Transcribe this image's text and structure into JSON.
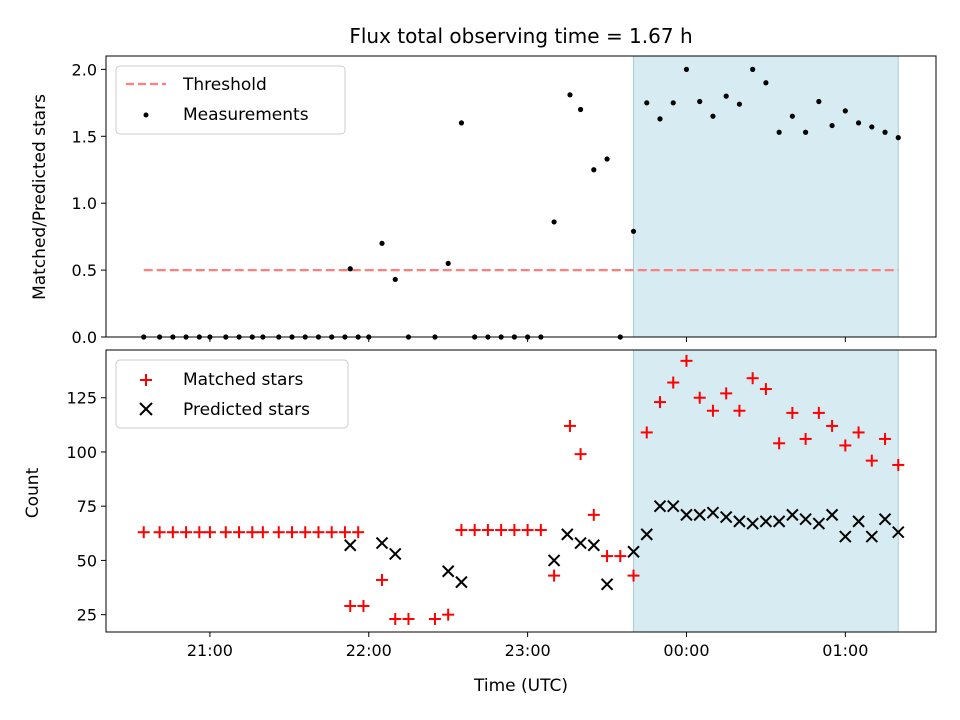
{
  "chart_data": [
    {
      "type": "scatter",
      "title": "Flux total observing time = 1.67 h",
      "xlabel": "",
      "ylabel": "Matched/Predicted stars",
      "ylim": [
        0,
        2.1
      ],
      "yticks": [
        "0.0",
        "0.5",
        "1.0",
        "1.5",
        "2.0"
      ],
      "highlight_span": [
        "23:40",
        "01:20"
      ],
      "legend_position": "upper-left",
      "series": [
        {
          "name": "Threshold",
          "type": "line",
          "color": "#ff7f7f",
          "x": [
            "20:35",
            "01:20"
          ],
          "y": [
            0.5,
            0.5
          ]
        },
        {
          "name": "Measurements",
          "type": "scatter",
          "marker": "dot",
          "color": "#000000",
          "x": [
            "20:35",
            "20:41",
            "20:46",
            "20:51",
            "20:56",
            "21:00",
            "21:06",
            "21:11",
            "21:16",
            "21:20",
            "21:26",
            "21:31",
            "21:36",
            "21:41",
            "21:46",
            "21:51",
            "21:56",
            "21:53",
            "22:00",
            "22:05",
            "22:10",
            "22:15",
            "22:25",
            "22:30",
            "22:35",
            "22:40",
            "22:45",
            "22:50",
            "22:55",
            "23:00",
            "23:05",
            "23:10",
            "23:16",
            "23:20",
            "23:25",
            "23:30",
            "23:35",
            "23:40",
            "23:45",
            "23:50",
            "23:55",
            "00:00",
            "00:05",
            "00:10",
            "00:15",
            "00:20",
            "00:25",
            "00:30",
            "00:35",
            "00:40",
            "00:45",
            "00:50",
            "00:55",
            "01:00",
            "01:05",
            "01:10",
            "01:15",
            "01:20"
          ],
          "y": [
            0,
            0,
            0,
            0,
            0,
            0,
            0,
            0,
            0,
            0,
            0,
            0,
            0,
            0,
            0,
            0,
            0,
            0.51,
            0,
            0.7,
            0.43,
            0,
            0,
            0.55,
            1.6,
            0,
            0,
            0,
            0,
            0,
            0,
            0.86,
            1.81,
            1.7,
            1.25,
            1.33,
            0,
            0.79,
            1.75,
            1.63,
            1.75,
            2.0,
            1.76,
            1.65,
            1.8,
            1.74,
            2.0,
            1.9,
            1.53,
            1.65,
            1.53,
            1.76,
            1.58,
            1.69,
            1.6,
            1.57,
            1.53,
            1.49
          ]
        }
      ]
    },
    {
      "type": "scatter",
      "title": "",
      "xlabel": "Time (UTC)",
      "ylabel": "Count",
      "ylim": [
        17,
        147
      ],
      "yticks": [
        "25",
        "50",
        "75",
        "100",
        "125"
      ],
      "xticks": [
        "21:00",
        "22:00",
        "23:00",
        "00:00",
        "01:00"
      ],
      "highlight_span": [
        "23:40",
        "01:20"
      ],
      "legend_position": "upper-left",
      "series": [
        {
          "name": "Matched stars",
          "type": "scatter",
          "marker": "plus",
          "color": "#ff0000",
          "x": [
            "20:35",
            "20:41",
            "20:46",
            "20:51",
            "20:56",
            "21:00",
            "21:06",
            "21:11",
            "21:16",
            "21:20",
            "21:26",
            "21:31",
            "21:36",
            "21:41",
            "21:46",
            "21:51",
            "21:56",
            "21:53",
            "21:58",
            "22:05",
            "22:10",
            "22:15",
            "22:25",
            "22:30",
            "22:35",
            "22:40",
            "22:45",
            "22:50",
            "22:55",
            "23:00",
            "23:05",
            "23:10",
            "23:16",
            "23:20",
            "23:25",
            "23:30",
            "23:35",
            "23:40",
            "23:45",
            "23:50",
            "23:55",
            "00:00",
            "00:05",
            "00:10",
            "00:15",
            "00:20",
            "00:25",
            "00:30",
            "00:35",
            "00:40",
            "00:45",
            "00:50",
            "00:55",
            "01:00",
            "01:05",
            "01:10",
            "01:15",
            "01:20"
          ],
          "y": [
            63,
            63,
            63,
            63,
            63,
            63,
            63,
            63,
            63,
            63,
            63,
            63,
            63,
            63,
            63,
            63,
            63,
            29,
            29,
            41,
            23,
            23,
            23,
            25,
            64,
            64,
            64,
            64,
            64,
            64,
            64,
            43,
            112,
            99,
            71,
            52,
            52,
            43,
            109,
            123,
            132,
            142,
            125,
            119,
            127,
            119,
            134,
            129,
            104,
            118,
            106,
            118,
            112,
            103,
            109,
            96,
            106,
            94
          ]
        },
        {
          "name": "Predicted stars",
          "type": "scatter",
          "marker": "x",
          "color": "#000000",
          "x": [
            "21:53",
            "22:05",
            "22:10",
            "22:30",
            "22:35",
            "23:10",
            "23:15",
            "23:20",
            "23:25",
            "23:30",
            "23:40",
            "23:45",
            "23:50",
            "23:55",
            "00:00",
            "00:05",
            "00:10",
            "00:15",
            "00:20",
            "00:25",
            "00:30",
            "00:35",
            "00:40",
            "00:45",
            "00:50",
            "00:55",
            "01:00",
            "01:05",
            "01:10",
            "01:15",
            "01:20"
          ],
          "y": [
            57,
            58,
            53,
            45,
            40,
            50,
            62,
            58,
            57,
            39,
            54,
            62,
            75,
            75,
            71,
            71,
            72,
            70,
            68,
            67,
            68,
            68,
            71,
            69,
            67,
            71,
            61,
            68,
            61,
            69,
            63
          ]
        }
      ]
    }
  ]
}
